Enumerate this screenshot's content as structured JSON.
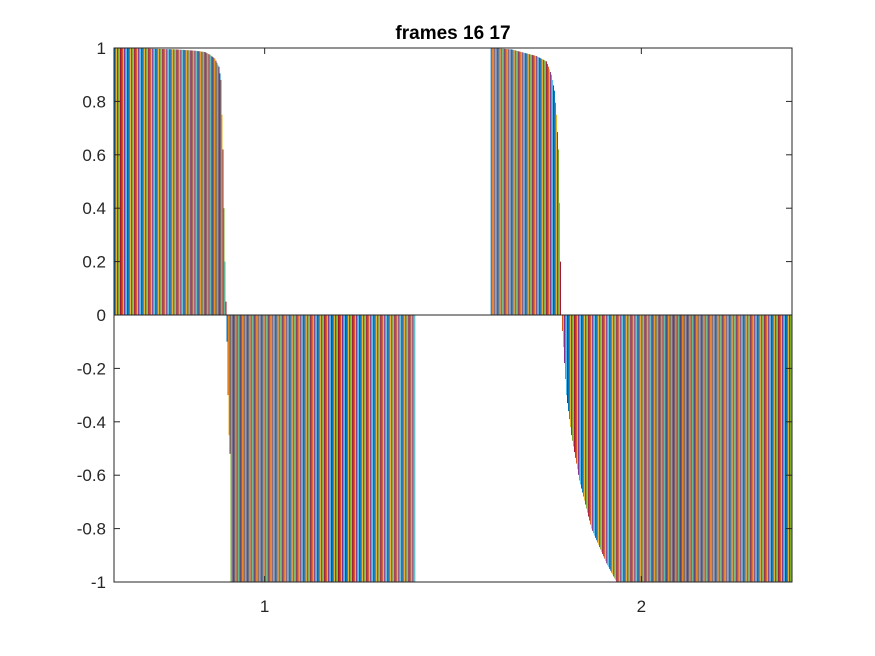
{
  "chart_data": {
    "type": "bar",
    "title": "frames 16 17",
    "xlabel": "",
    "ylabel": "",
    "ylim": [
      -1,
      1
    ],
    "xlim": [
      0.6,
      2.4
    ],
    "x_ticks": [
      1,
      2
    ],
    "x_tick_labels": [
      "1",
      "2"
    ],
    "y_ticks": [
      -1,
      -0.8,
      -0.6,
      -0.4,
      -0.2,
      0,
      0.2,
      0.4,
      0.6,
      0.8,
      1
    ],
    "y_tick_labels": [
      "-1",
      "-0.8",
      "-0.6",
      "-0.4",
      "-0.2",
      "0",
      "0.2",
      "0.4",
      "0.6",
      "0.8",
      "1"
    ],
    "grid": false,
    "legend": false,
    "bars_per_group": 300,
    "series_colors": [
      "#0072BD",
      "#D95319",
      "#EDB120",
      "#7E2F8E",
      "#77AC30",
      "#4DBEEE",
      "#A2142F"
    ],
    "groups": [
      {
        "category": "1",
        "profile": [
          [
            0,
            1.0
          ],
          [
            30,
            0.998
          ],
          [
            60,
            0.995
          ],
          [
            80,
            0.99
          ],
          [
            90,
            0.985
          ],
          [
            95,
            0.975
          ],
          [
            100,
            0.96
          ],
          [
            104,
            0.93
          ],
          [
            106,
            0.88
          ],
          [
            108,
            0.62
          ],
          [
            109,
            0.4
          ],
          [
            110,
            0.2
          ],
          [
            111,
            0.05
          ],
          [
            112,
            -0.1
          ],
          [
            113,
            -0.3
          ],
          [
            114,
            -0.45
          ],
          [
            115,
            -0.52
          ],
          [
            116,
            -1.0
          ],
          [
            299,
            -1.0
          ]
        ]
      },
      {
        "category": "2",
        "profile": [
          [
            0,
            1.0
          ],
          [
            20,
            0.995
          ],
          [
            45,
            0.97
          ],
          [
            55,
            0.95
          ],
          [
            60,
            0.9
          ],
          [
            63,
            0.84
          ],
          [
            65,
            0.75
          ],
          [
            67,
            0.62
          ],
          [
            68,
            0.42
          ],
          [
            69,
            0.2
          ],
          [
            70,
            0.0
          ],
          [
            72,
            -0.12
          ],
          [
            75,
            -0.3
          ],
          [
            80,
            -0.45
          ],
          [
            88,
            -0.62
          ],
          [
            100,
            -0.8
          ],
          [
            115,
            -0.93
          ],
          [
            125,
            -1.0
          ],
          [
            299,
            -1.0
          ]
        ]
      }
    ]
  }
}
